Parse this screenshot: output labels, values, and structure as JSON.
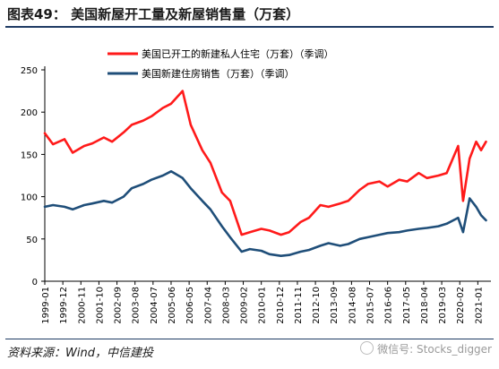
{
  "figure": {
    "title": "图表49：   美国新屋开工量及新屋销售量（万套）",
    "source": "资料来源：Wind，中信建投",
    "watermark": "微信号: Stocks_digger"
  },
  "chart_data": {
    "type": "line",
    "title": "",
    "xlabel": "",
    "ylabel": "",
    "ylim": [
      0,
      250
    ],
    "yticks": [
      0,
      50,
      100,
      150,
      200,
      250
    ],
    "x_tick_labels": [
      "1999-01",
      "1999-12",
      "2000-11",
      "2001-10",
      "2002-09",
      "2003-08",
      "2004-07",
      "2005-06",
      "2006-05",
      "2007-04",
      "2008-03",
      "2009-02",
      "2010-01",
      "2010-12",
      "2011-11",
      "2012-10",
      "2013-09",
      "2014-08",
      "2015-07",
      "2016-06",
      "2017-05",
      "2018-04",
      "2019-03",
      "2020-02",
      "2021-01"
    ],
    "grid": false,
    "legend_position": "top-left",
    "series": [
      {
        "name": "美国已开工的新建私人住宅（万套）（季调）",
        "color": "#ff1a1a",
        "x": [
          "1999-01",
          "1999-06",
          "2000-01",
          "2000-06",
          "2001-01",
          "2001-06",
          "2002-01",
          "2002-06",
          "2003-01",
          "2003-06",
          "2004-01",
          "2004-06",
          "2005-01",
          "2005-06",
          "2006-01",
          "2006-06",
          "2007-01",
          "2007-06",
          "2008-01",
          "2008-06",
          "2009-01",
          "2009-06",
          "2010-01",
          "2010-06",
          "2011-01",
          "2011-06",
          "2012-01",
          "2012-06",
          "2013-01",
          "2013-06",
          "2014-01",
          "2014-06",
          "2015-01",
          "2015-06",
          "2016-01",
          "2016-06",
          "2017-01",
          "2017-06",
          "2018-01",
          "2018-06",
          "2019-01",
          "2019-06",
          "2020-01",
          "2020-04",
          "2020-08",
          "2020-12",
          "2021-03",
          "2021-06"
        ],
        "values": [
          175,
          162,
          168,
          152,
          160,
          163,
          170,
          165,
          176,
          185,
          190,
          195,
          205,
          210,
          225,
          185,
          155,
          140,
          105,
          95,
          55,
          58,
          62,
          60,
          55,
          58,
          70,
          75,
          90,
          88,
          92,
          95,
          108,
          115,
          118,
          112,
          120,
          118,
          128,
          122,
          125,
          128,
          160,
          95,
          145,
          165,
          155,
          165
        ]
      },
      {
        "name": "美国新建住房销售（万套）（季调）",
        "color": "#1f4e79",
        "x": [
          "1999-01",
          "1999-06",
          "2000-01",
          "2000-06",
          "2001-01",
          "2001-06",
          "2002-01",
          "2002-06",
          "2003-01",
          "2003-06",
          "2004-01",
          "2004-06",
          "2005-01",
          "2005-06",
          "2006-01",
          "2006-06",
          "2007-01",
          "2007-06",
          "2008-01",
          "2008-06",
          "2009-01",
          "2009-06",
          "2010-01",
          "2010-06",
          "2011-01",
          "2011-06",
          "2012-01",
          "2012-06",
          "2013-01",
          "2013-06",
          "2014-01",
          "2014-06",
          "2015-01",
          "2015-06",
          "2016-01",
          "2016-06",
          "2017-01",
          "2017-06",
          "2018-01",
          "2018-06",
          "2019-01",
          "2019-06",
          "2020-01",
          "2020-04",
          "2020-08",
          "2020-12",
          "2021-03",
          "2021-06"
        ],
        "values": [
          88,
          90,
          88,
          85,
          90,
          92,
          95,
          93,
          100,
          110,
          115,
          120,
          125,
          130,
          122,
          110,
          95,
          85,
          65,
          52,
          35,
          38,
          36,
          32,
          30,
          31,
          35,
          37,
          42,
          45,
          42,
          44,
          50,
          52,
          55,
          57,
          58,
          60,
          62,
          63,
          65,
          68,
          75,
          58,
          98,
          88,
          78,
          72
        ]
      }
    ]
  }
}
